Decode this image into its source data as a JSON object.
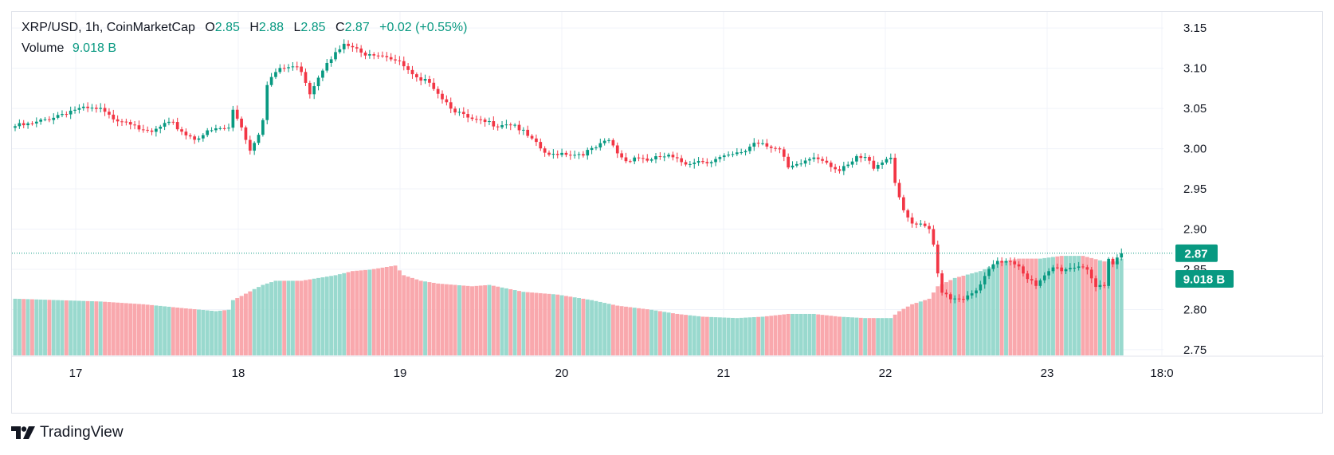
{
  "legend": {
    "symbol": "XRP/USD",
    "interval": "1h",
    "source": "CoinMarketCap",
    "open_key": "O",
    "open": "2.85",
    "high_key": "H",
    "high": "2.88",
    "low_key": "L",
    "low": "2.85",
    "close_key": "C",
    "close": "2.87",
    "change": "+0.02 (+0.55%)",
    "volume_label": "Volume",
    "volume_value": "9.018 B"
  },
  "price_badge": "2.87",
  "volume_badge": "9.018 B",
  "brand": "TradingView",
  "colors": {
    "up": "#089981",
    "down": "#f23645",
    "vol_up": "#99d9ce",
    "vol_down": "#f9a8ad",
    "grid": "#f0f3fa",
    "axis_text": "#131722"
  },
  "chart_data": {
    "type": "candlestick",
    "y_ticks": [
      "2.75",
      "2.80",
      "2.85",
      "2.90",
      "2.95",
      "3.00",
      "3.05",
      "3.10",
      "3.15"
    ],
    "ylim": [
      2.743,
      3.17
    ],
    "x_ticks": [
      "17",
      "18",
      "19",
      "20",
      "21",
      "22",
      "23",
      "18:0"
    ],
    "grid": true,
    "last_close": 2.87,
    "anchors": [
      [
        0,
        3.028
      ],
      [
        4,
        3.03
      ],
      [
        8,
        3.038
      ],
      [
        10,
        3.042
      ],
      [
        14,
        3.049
      ],
      [
        17,
        3.049
      ],
      [
        20,
        3.048
      ],
      [
        22,
        3.04
      ],
      [
        24,
        3.037
      ],
      [
        26,
        3.035
      ],
      [
        28,
        3.032
      ],
      [
        30,
        3.02
      ],
      [
        32,
        3.02
      ],
      [
        35,
        3.03
      ],
      [
        37,
        3.03
      ],
      [
        40,
        3.018
      ],
      [
        42,
        3.013
      ],
      [
        44,
        3.018
      ],
      [
        46,
        3.022
      ],
      [
        48,
        3.025
      ],
      [
        50,
        3.025
      ],
      [
        51,
        3.048
      ],
      [
        53,
        3.028
      ],
      [
        55,
        2.998
      ],
      [
        57,
        3.02
      ],
      [
        58,
        3.038
      ],
      [
        59,
        3.082
      ],
      [
        61,
        3.095
      ],
      [
        63,
        3.1
      ],
      [
        65,
        3.102
      ],
      [
        67,
        3.098
      ],
      [
        69,
        3.07
      ],
      [
        71,
        3.09
      ],
      [
        73,
        3.11
      ],
      [
        75,
        3.118
      ],
      [
        77,
        3.128
      ],
      [
        79,
        3.126
      ],
      [
        81,
        3.118
      ],
      [
        83,
        3.12
      ],
      [
        85,
        3.118
      ],
      [
        87,
        3.116
      ],
      [
        89,
        3.11
      ],
      [
        91,
        3.102
      ],
      [
        93,
        3.09
      ],
      [
        95,
        3.082
      ],
      [
        97,
        3.085
      ],
      [
        99,
        3.07
      ],
      [
        101,
        3.058
      ],
      [
        103,
        3.048
      ],
      [
        105,
        3.04
      ],
      [
        107,
        3.035
      ],
      [
        109,
        3.033
      ],
      [
        111,
        3.032
      ],
      [
        113,
        3.03
      ],
      [
        115,
        3.032
      ],
      [
        117,
        3.03
      ],
      [
        119,
        3.02
      ],
      [
        121,
        3.01
      ],
      [
        123,
        3.0
      ],
      [
        125,
        2.99
      ],
      [
        127,
        2.995
      ],
      [
        129,
        2.995
      ],
      [
        131,
        2.993
      ],
      [
        133,
        2.995
      ],
      [
        135,
        2.998
      ],
      [
        137,
        3.004
      ],
      [
        139,
        3.01
      ],
      [
        141,
        2.995
      ],
      [
        143,
        2.985
      ],
      [
        145,
        2.99
      ],
      [
        147,
        2.988
      ],
      [
        149,
        2.985
      ],
      [
        151,
        2.99
      ],
      [
        153,
        2.99
      ],
      [
        155,
        2.985
      ],
      [
        157,
        2.982
      ],
      [
        159,
        2.985
      ],
      [
        161,
        2.985
      ],
      [
        163,
        2.985
      ],
      [
        165,
        2.988
      ],
      [
        167,
        2.99
      ],
      [
        169,
        2.993
      ],
      [
        171,
        2.998
      ],
      [
        173,
        3.008
      ],
      [
        175,
        3.008
      ],
      [
        177,
        3.003
      ],
      [
        179,
        2.998
      ],
      [
        181,
        2.975
      ],
      [
        183,
        2.978
      ],
      [
        185,
        2.985
      ],
      [
        187,
        2.99
      ],
      [
        189,
        2.988
      ],
      [
        191,
        2.98
      ],
      [
        193,
        2.972
      ],
      [
        195,
        2.978
      ],
      [
        197,
        2.988
      ],
      [
        199,
        2.988
      ],
      [
        201,
        2.978
      ],
      [
        203,
        2.985
      ],
      [
        205,
        2.99
      ],
      [
        206,
        2.96
      ],
      [
        208,
        2.92
      ],
      [
        210,
        2.906
      ],
      [
        212,
        2.904
      ],
      [
        214,
        2.898
      ],
      [
        215,
        2.88
      ],
      [
        216,
        2.845
      ],
      [
        217,
        2.824
      ],
      [
        219,
        2.815
      ],
      [
        221,
        2.815
      ],
      [
        223,
        2.815
      ],
      [
        225,
        2.822
      ],
      [
        227,
        2.84
      ],
      [
        229,
        2.855
      ],
      [
        231,
        2.86
      ],
      [
        233,
        2.862
      ],
      [
        235,
        2.855
      ],
      [
        237,
        2.84
      ],
      [
        239,
        2.828
      ],
      [
        241,
        2.84
      ],
      [
        243,
        2.852
      ],
      [
        245,
        2.85
      ],
      [
        247,
        2.852
      ],
      [
        249,
        2.855
      ],
      [
        251,
        2.852
      ],
      [
        253,
        2.828
      ],
      [
        255,
        2.826
      ],
      [
        256,
        2.86
      ],
      [
        257,
        2.855
      ],
      [
        258,
        2.864
      ],
      [
        259,
        2.87
      ]
    ],
    "volume_range": [
      8.2,
      14.6
    ],
    "volume_profile": [
      [
        0,
        12.3
      ],
      [
        20,
        12.1
      ],
      [
        30,
        11.9
      ],
      [
        40,
        11.6
      ],
      [
        47,
        11.4
      ],
      [
        50,
        11.5
      ],
      [
        51,
        12.2
      ],
      [
        53,
        12.5
      ],
      [
        56,
        13.0
      ],
      [
        58,
        13.3
      ],
      [
        61,
        13.6
      ],
      [
        67,
        13.6
      ],
      [
        71,
        13.8
      ],
      [
        75,
        14.0
      ],
      [
        79,
        14.3
      ],
      [
        83,
        14.4
      ],
      [
        87,
        14.6
      ],
      [
        89,
        14.7
      ],
      [
        91,
        14.0
      ],
      [
        95,
        13.6
      ],
      [
        99,
        13.4
      ],
      [
        107,
        13.2
      ],
      [
        111,
        13.3
      ],
      [
        119,
        12.8
      ],
      [
        127,
        12.6
      ],
      [
        135,
        12.2
      ],
      [
        141,
        11.8
      ],
      [
        149,
        11.5
      ],
      [
        155,
        11.2
      ],
      [
        161,
        11.0
      ],
      [
        169,
        10.9
      ],
      [
        175,
        11.0
      ],
      [
        181,
        11.2
      ],
      [
        187,
        11.2
      ],
      [
        193,
        11.0
      ],
      [
        199,
        10.9
      ],
      [
        205,
        10.9
      ],
      [
        207,
        11.4
      ],
      [
        210,
        11.9
      ],
      [
        214,
        12.3
      ],
      [
        216,
        13.2
      ],
      [
        220,
        13.8
      ],
      [
        226,
        14.3
      ],
      [
        231,
        15.0
      ],
      [
        235,
        15.2
      ],
      [
        240,
        15.2
      ],
      [
        245,
        15.4
      ],
      [
        250,
        15.4
      ],
      [
        255,
        15.0
      ],
      [
        258,
        15.0
      ],
      [
        259,
        15.2
      ]
    ]
  }
}
